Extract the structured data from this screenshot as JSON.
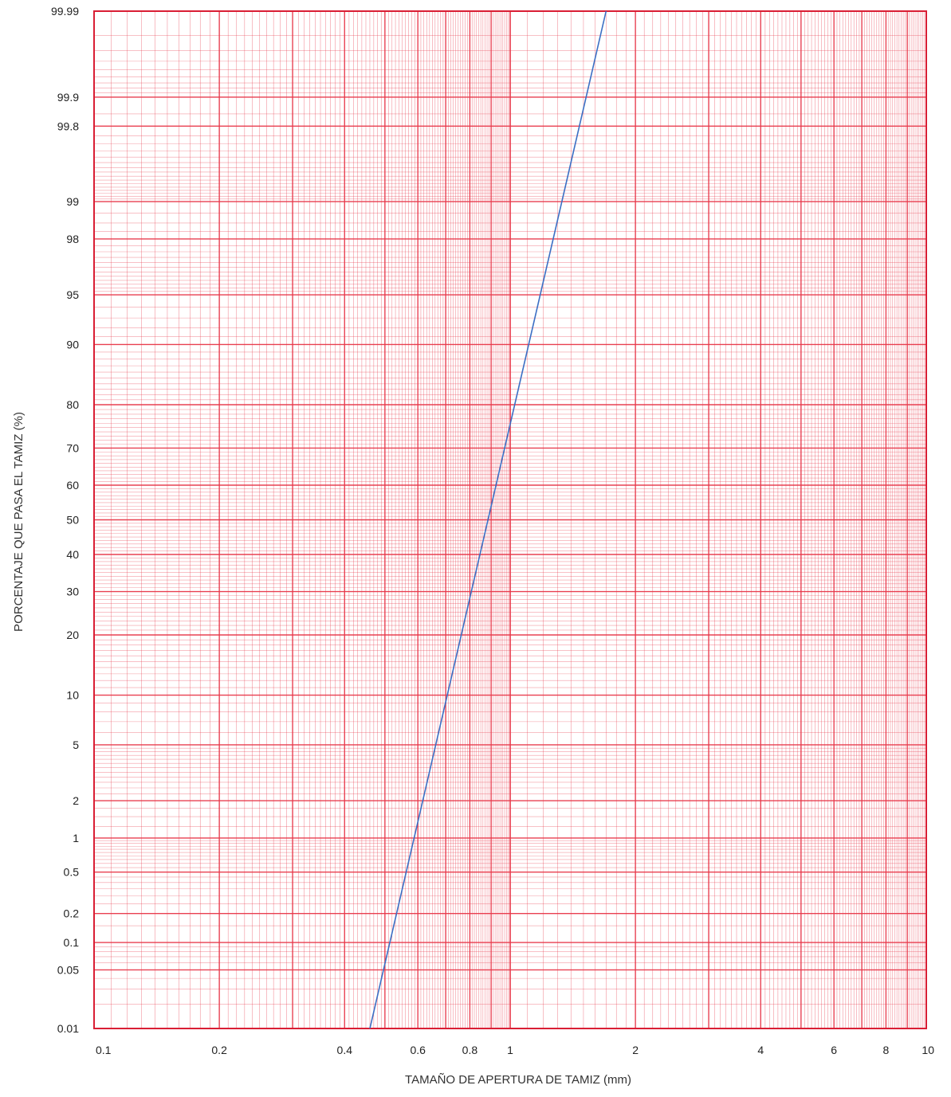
{
  "chart_data": {
    "type": "line",
    "xlabel": "TAMAÑO DE APERTURA DE TAMIZ (mm)",
    "ylabel": "PORCENTAJE QUE PASA EL TAMIZ (%)",
    "x_scale": "log",
    "y_scale": "probability",
    "xlim": [
      0.1,
      10
    ],
    "ylim": [
      0.01,
      99.99
    ],
    "grid": true,
    "x_ticks": [
      0.1,
      0.2,
      0.4,
      0.6,
      0.8,
      1,
      2,
      4,
      6,
      8,
      10
    ],
    "x_tick_labels": [
      "0.1",
      "0.2",
      "0.4",
      "0.6",
      "0.8",
      "1",
      "2",
      "4",
      "6",
      "8",
      "10"
    ],
    "y_ticks": [
      99.99,
      99.9,
      99.8,
      99,
      98,
      95,
      90,
      80,
      70,
      60,
      50,
      40,
      30,
      20,
      10,
      5,
      2,
      1,
      0.5,
      0.2,
      0.1,
      0.05,
      0.01
    ],
    "y_tick_labels": [
      "99.99",
      "99.9",
      "99.8",
      "99",
      "98",
      "95",
      "90",
      "80",
      "70",
      "60",
      "50",
      "40",
      "30",
      "20",
      "10",
      "5",
      "2",
      "1",
      "0.5",
      "0.2",
      "0.1",
      "0.05",
      "0.01"
    ],
    "series": [
      {
        "x": [
          0.46,
          1.7
        ],
        "y": [
          0.01,
          99.99
        ]
      }
    ],
    "colors": {
      "grid": "#e8384a",
      "line": "#3b6fc4"
    }
  }
}
